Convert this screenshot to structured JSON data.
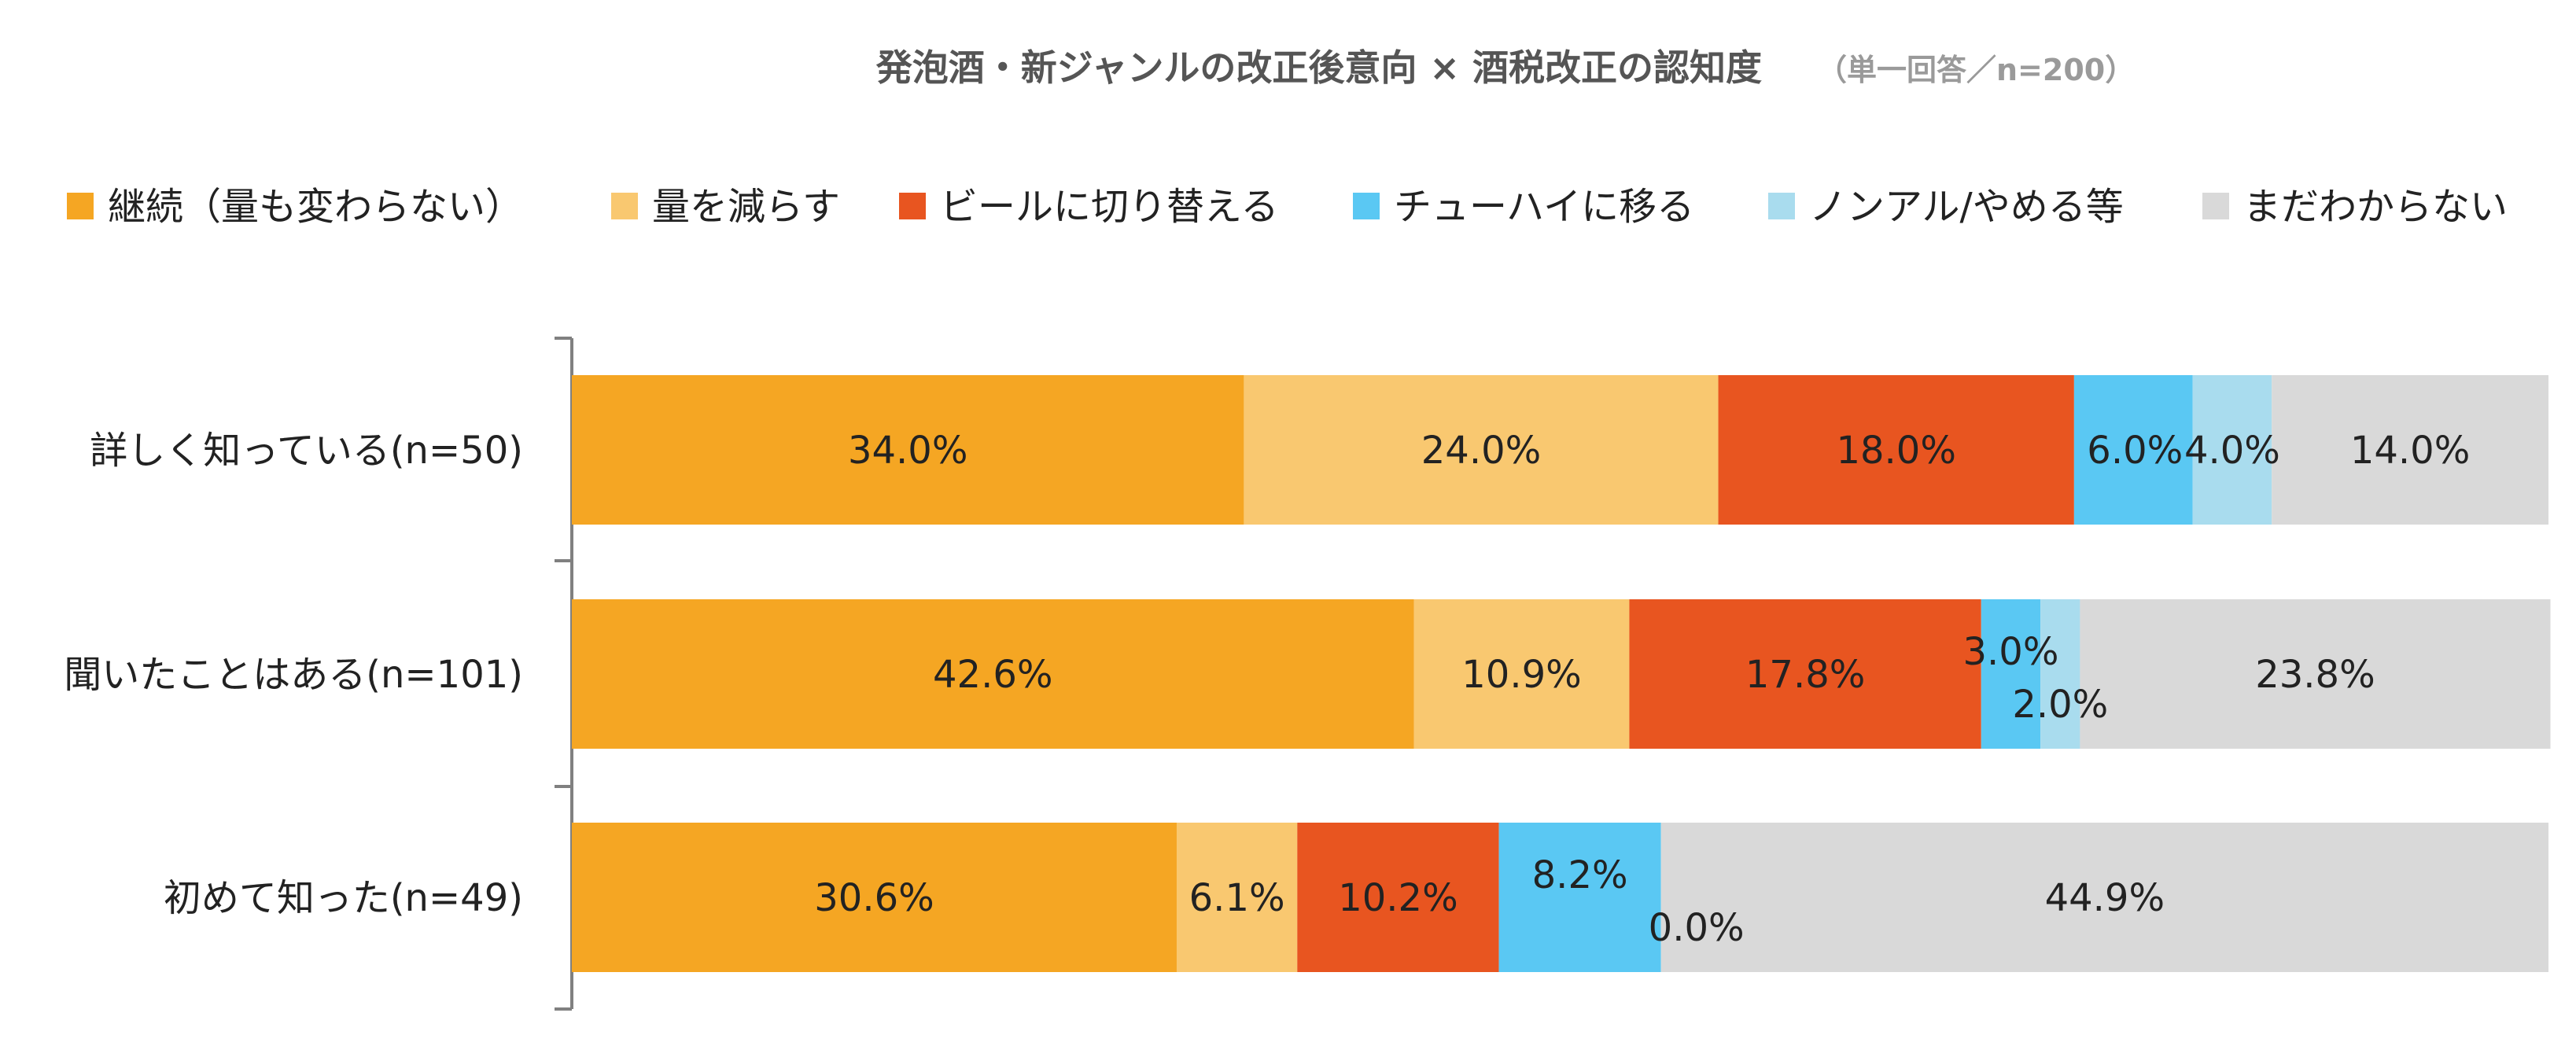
{
  "chart_data": {
    "type": "bar",
    "orientation": "horizontal",
    "stacked": true,
    "title": "発泡酒・新ジャンルの改正後意向 × 酒税改正の認知度",
    "title_note": "（単一回答／n=200）",
    "legend_position": "top",
    "categories": [
      "詳しく知っている(n=50)",
      "聞いたことはある(n=101)",
      "初めて知った(n=49)"
    ],
    "xlim": [
      0,
      100
    ],
    "series": [
      {
        "name": "継続（量も変わらない）",
        "color": "#F5A623",
        "values": [
          34.0,
          42.6,
          30.6
        ],
        "labels": [
          "34.0%",
          "42.6%",
          "30.6%"
        ]
      },
      {
        "name": "量を減らす",
        "color": "#F9C870",
        "values": [
          24.0,
          10.9,
          6.1
        ],
        "labels": [
          "24.0%",
          "10.9%",
          "6.1%"
        ]
      },
      {
        "name": "ビールに切り替える",
        "color": "#E85520",
        "values": [
          18.0,
          17.8,
          10.2
        ],
        "labels": [
          "18.0%",
          "17.8%",
          "10.2%"
        ]
      },
      {
        "name": "チューハイに移る",
        "color": "#5AC8F3",
        "values": [
          6.0,
          3.0,
          8.2
        ],
        "labels": [
          "6.0%",
          "3.0%",
          "8.2%"
        ]
      },
      {
        "name": "ノンアル/やめる等",
        "color": "#A9DCEE",
        "values": [
          4.0,
          2.0,
          0.0
        ],
        "labels": [
          "4.0%",
          "2.0%",
          "0.0%"
        ]
      },
      {
        "name": "まだわからない",
        "color": "#D9D9D9",
        "values": [
          14.0,
          23.8,
          44.9
        ],
        "labels": [
          "14.0%",
          "23.8%",
          "44.9%"
        ]
      }
    ]
  }
}
